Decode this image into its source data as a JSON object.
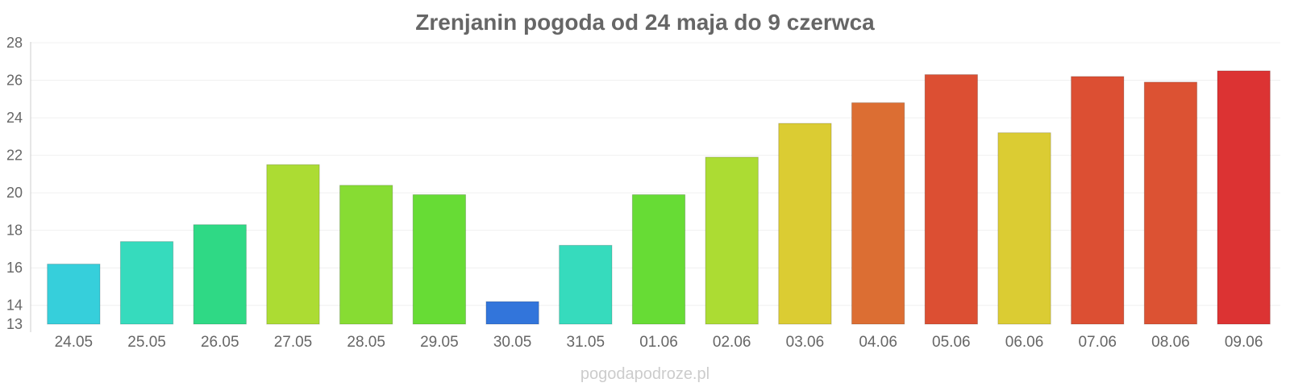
{
  "chart_data": {
    "type": "bar",
    "title": "Zrenjanin pogoda od 24 maja do 9 czerwca",
    "xlabel": "",
    "ylabel": "",
    "ylim": [
      13,
      28
    ],
    "yticks": [
      13,
      14,
      16,
      18,
      20,
      22,
      24,
      26,
      28
    ],
    "grid": true,
    "categories": [
      "24.05",
      "25.05",
      "26.05",
      "27.05",
      "28.05",
      "29.05",
      "30.05",
      "31.05",
      "01.06",
      "02.06",
      "03.06",
      "04.06",
      "05.06",
      "06.06",
      "07.06",
      "08.06",
      "09.06"
    ],
    "values": [
      16.2,
      17.4,
      18.3,
      21.5,
      20.4,
      19.9,
      14.2,
      17.2,
      19.9,
      21.9,
      23.7,
      24.8,
      26.3,
      23.2,
      26.2,
      25.9,
      26.5
    ],
    "colors": [
      "#36cfdb",
      "#36dbbd",
      "#2fd985",
      "#acdc33",
      "#87dc33",
      "#67dc35",
      "#3275db",
      "#36dbbd",
      "#67dc35",
      "#acdc33",
      "#dbcc33",
      "#dc6e33",
      "#dc4f33",
      "#dbcc33",
      "#dc4f33",
      "#dc5233",
      "#dc3333"
    ]
  },
  "watermark": "pogodapodroze.pl"
}
